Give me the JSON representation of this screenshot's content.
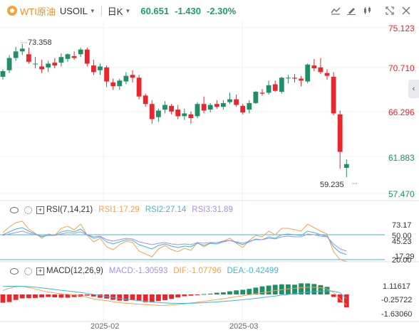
{
  "header": {
    "symbol_name": "WTI原油",
    "symbol_code": "USOIL",
    "period": "日K",
    "last_price": "60.651",
    "change": "-1.430",
    "change_pct": "-2.30%"
  },
  "toolbar_icons": [
    "indicator-icon",
    "draw-icon",
    "candle-type-icon",
    "fullscreen-icon",
    "settings-icon"
  ],
  "price_axis": [
    "75.123",
    "70.710",
    "66.296",
    "61.883",
    "57.470"
  ],
  "annotations": {
    "high": "73.358",
    "low": "59.235"
  },
  "rsi": {
    "name": "RSI(7,14,21)",
    "rsi1": "RSI1:17.29",
    "rsi2": "RSI2:27.14",
    "rsi3": "RSI3:31.89",
    "axis": [
      "73.17",
      "50.00",
      "45.23",
      "17.29",
      "20.00"
    ]
  },
  "macd": {
    "name": "MACD(12,26,9)",
    "macd": "MACD:-1.30593",
    "dif": "DIF:-1.07796",
    "dea": "DEA:-0.42499",
    "axis": [
      "1.11617",
      "-0.25722",
      "-1.63060"
    ]
  },
  "x_labels": [
    "2025-02",
    "2025-03"
  ],
  "colors": {
    "up": "#1f8f67",
    "down": "#e8262b",
    "rsi1": "#f5a24b",
    "rsi2": "#3db8d8",
    "rsi3": "#a88ee6",
    "dif": "#f5a24b",
    "dea": "#3db8d8",
    "accent": "#f08c1f"
  },
  "chart_data": {
    "type": "candlestick",
    "ylim": [
      57.47,
      75.123
    ],
    "candles": [
      [
        69.9,
        70.7,
        69.6,
        70.5
      ],
      [
        70.6,
        72.2,
        70.3,
        71.9
      ],
      [
        71.9,
        73.1,
        71.6,
        72.6
      ],
      [
        72.6,
        73.4,
        72.2,
        72.9
      ],
      [
        72.3,
        73.0,
        71.3,
        71.5
      ],
      [
        71.3,
        72.0,
        70.8,
        71.3
      ],
      [
        71.0,
        71.7,
        70.3,
        70.7
      ],
      [
        70.9,
        71.6,
        70.4,
        71.3
      ],
      [
        71.4,
        71.9,
        70.8,
        71.1
      ],
      [
        71.4,
        72.4,
        71.0,
        72.0
      ],
      [
        71.8,
        72.4,
        71.5,
        72.3
      ],
      [
        72.1,
        72.6,
        71.7,
        71.9
      ],
      [
        72.3,
        73.0,
        72.0,
        72.8
      ],
      [
        72.8,
        73.0,
        71.0,
        71.3
      ],
      [
        71.1,
        71.7,
        70.1,
        70.4
      ],
      [
        70.6,
        71.3,
        70.1,
        71.0
      ],
      [
        70.9,
        71.1,
        68.8,
        69.4
      ],
      [
        69.3,
        69.7,
        68.5,
        68.9
      ],
      [
        68.9,
        69.7,
        68.5,
        69.5
      ],
      [
        69.4,
        70.4,
        69.1,
        70.0
      ],
      [
        70.1,
        70.6,
        69.3,
        69.8
      ],
      [
        69.8,
        70.1,
        67.5,
        67.8
      ],
      [
        67.9,
        68.1,
        66.7,
        67.0
      ],
      [
        67.0,
        67.4,
        64.9,
        65.4
      ],
      [
        65.6,
        66.5,
        65.1,
        66.3
      ],
      [
        66.4,
        67.3,
        66.0,
        66.9
      ],
      [
        66.8,
        67.0,
        65.9,
        66.2
      ],
      [
        66.4,
        66.9,
        65.4,
        65.7
      ],
      [
        65.7,
        66.5,
        65.3,
        66.0
      ],
      [
        65.9,
        66.2,
        64.9,
        65.5
      ],
      [
        65.7,
        67.2,
        65.5,
        67.0
      ],
      [
        67.0,
        67.8,
        66.0,
        66.3
      ],
      [
        66.4,
        67.1,
        66.1,
        66.9
      ],
      [
        67.0,
        67.4,
        66.5,
        66.7
      ],
      [
        66.7,
        67.4,
        66.4,
        67.1
      ],
      [
        67.2,
        68.2,
        67.0,
        67.5
      ],
      [
        67.5,
        68.0,
        66.7,
        66.9
      ],
      [
        66.8,
        67.0,
        65.9,
        66.1
      ],
      [
        66.4,
        67.4,
        66.0,
        67.1
      ],
      [
        67.1,
        68.4,
        67.0,
        68.3
      ],
      [
        68.2,
        68.6,
        67.9,
        68.1
      ],
      [
        68.2,
        69.5,
        68.0,
        69.0
      ],
      [
        69.1,
        69.5,
        68.3,
        68.4
      ],
      [
        68.3,
        69.9,
        68.1,
        69.8
      ],
      [
        69.8,
        70.1,
        69.2,
        69.8
      ],
      [
        69.8,
        70.2,
        69.3,
        69.7
      ],
      [
        69.7,
        70.0,
        68.9,
        69.5
      ],
      [
        69.4,
        71.3,
        69.2,
        71.2
      ],
      [
        71.1,
        71.8,
        70.5,
        70.8
      ],
      [
        70.9,
        71.9,
        70.2,
        70.4
      ],
      [
        70.3,
        70.7,
        69.6,
        70.0
      ],
      [
        69.9,
        70.4,
        65.8,
        66.0
      ],
      [
        65.9,
        66.3,
        60.1,
        61.9
      ],
      [
        60.2,
        61.1,
        59.2,
        60.6
      ]
    ],
    "rsi1": [
      58,
      66,
      72,
      74,
      63,
      57,
      50,
      56,
      54,
      64,
      67,
      62,
      70,
      54,
      45,
      50,
      38,
      34,
      41,
      46,
      44,
      32,
      28,
      24,
      35,
      40,
      34,
      31,
      36,
      33,
      44,
      38,
      43,
      42,
      46,
      50,
      43,
      37,
      47,
      54,
      52,
      60,
      55,
      64,
      64,
      62,
      60,
      70,
      65,
      60,
      56,
      31,
      20,
      17.29
    ],
    "rsi2": [
      55,
      59,
      63,
      65,
      60,
      56,
      52,
      55,
      54,
      59,
      61,
      59,
      63,
      55,
      50,
      52,
      45,
      42,
      45,
      48,
      47,
      41,
      38,
      35,
      40,
      42,
      39,
      37,
      39,
      38,
      43,
      40,
      43,
      42,
      45,
      47,
      44,
      41,
      45,
      49,
      48,
      52,
      50,
      55,
      56,
      55,
      54,
      60,
      58,
      55,
      53,
      38,
      30,
      27.14
    ],
    "rsi3": [
      54,
      56,
      58,
      60,
      57,
      55,
      53,
      54,
      54,
      56,
      58,
      57,
      59,
      55,
      52,
      53,
      48,
      46,
      48,
      50,
      49,
      45,
      43,
      41,
      43,
      44,
      42,
      41,
      42,
      41,
      44,
      43,
      44,
      44,
      46,
      47,
      45,
      43,
      46,
      48,
      48,
      50,
      49,
      52,
      53,
      52,
      52,
      56,
      55,
      53,
      52,
      42,
      35,
      31.89
    ],
    "macd_hist": [
      -0.83,
      -0.76,
      -0.55,
      -0.39,
      -0.37,
      -0.35,
      -0.3,
      -0.25,
      -0.29,
      -0.32,
      -0.32,
      -0.26,
      -0.22,
      -0.11,
      -0.2,
      -0.33,
      -0.41,
      -0.54,
      -0.62,
      -0.64,
      -0.54,
      -0.66,
      -0.77,
      -0.8,
      -0.66,
      -0.57,
      -0.45,
      -0.3,
      -0.18,
      -0.12,
      -0.07,
      0.04,
      0.08,
      0.17,
      0.21,
      0.32,
      0.41,
      0.47,
      0.56,
      0.69,
      0.81,
      0.89,
      0.97,
      1.02,
      1.01,
      0.98,
      1.12,
      1.11,
      1.05,
      0.94,
      0.77,
      -0.25,
      -0.8,
      -1.30593
    ],
    "dif": [
      0.4,
      0.62,
      0.78,
      0.82,
      0.7,
      0.55,
      0.38,
      0.25,
      0.15,
      0.08,
      0.02,
      -0.05,
      -0.12,
      -0.28,
      -0.45,
      -0.55,
      -0.62,
      -0.72,
      -0.82,
      -0.88,
      -0.92,
      -0.98,
      -1.02,
      -1.06,
      -1.1,
      -1.09,
      -1.05,
      -1.0,
      -0.94,
      -0.86,
      -0.78,
      -0.7,
      -0.61,
      -0.52,
      -0.43,
      -0.33,
      -0.23,
      -0.13,
      -0.03,
      0.08,
      0.18,
      0.28,
      0.38,
      0.47,
      0.55,
      0.62,
      0.68,
      0.72,
      0.72,
      0.68,
      0.55,
      0.2,
      -0.45,
      -1.07796
    ],
    "dea": [
      0.8,
      0.82,
      0.83,
      0.82,
      0.79,
      0.73,
      0.66,
      0.58,
      0.5,
      0.42,
      0.35,
      0.28,
      0.2,
      0.1,
      0.0,
      -0.1,
      -0.2,
      -0.3,
      -0.39,
      -0.47,
      -0.55,
      -0.62,
      -0.69,
      -0.75,
      -0.81,
      -0.85,
      -0.88,
      -0.89,
      -0.89,
      -0.88,
      -0.86,
      -0.83,
      -0.79,
      -0.75,
      -0.7,
      -0.65,
      -0.59,
      -0.53,
      -0.46,
      -0.39,
      -0.31,
      -0.23,
      -0.15,
      -0.07,
      0.0,
      0.08,
      0.15,
      0.22,
      0.28,
      0.33,
      0.37,
      0.34,
      0.16,
      -0.42499
    ]
  }
}
